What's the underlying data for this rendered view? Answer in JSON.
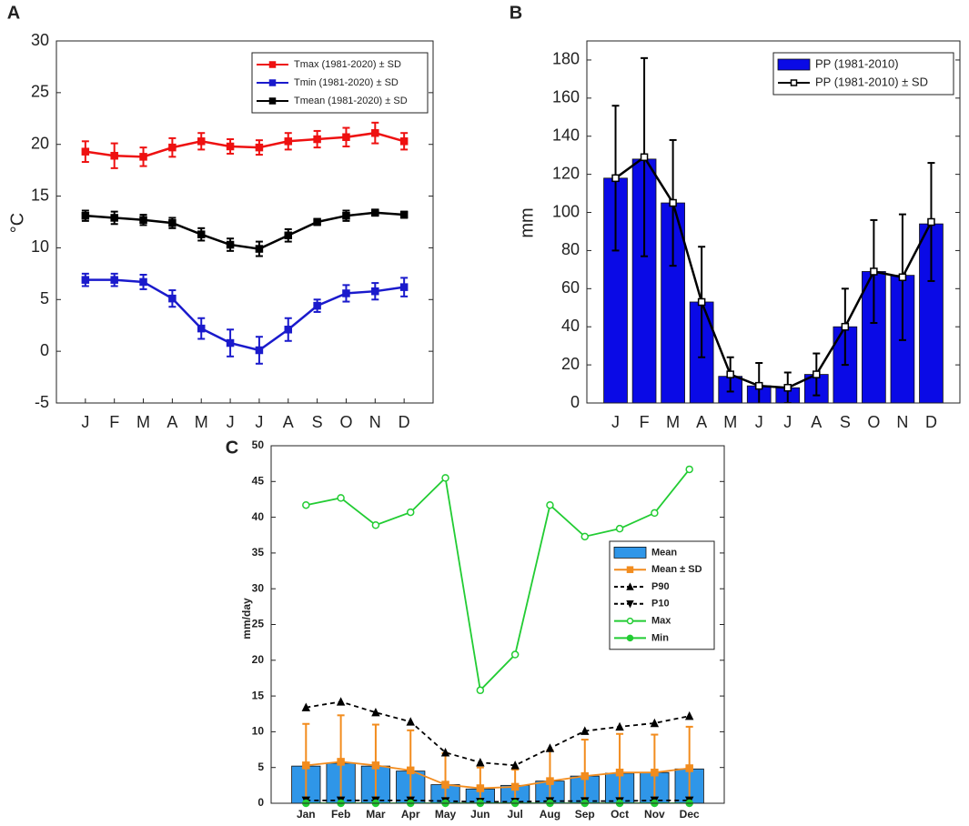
{
  "chart_data": [
    {
      "type": "line",
      "label": "A",
      "ylabel": "°C",
      "categories": [
        "J",
        "F",
        "M",
        "A",
        "M",
        "J",
        "J",
        "A",
        "S",
        "O",
        "N",
        "D"
      ],
      "ylim": [
        -5,
        30
      ],
      "yticks": [
        -5,
        0,
        5,
        10,
        15,
        20,
        25,
        30
      ],
      "legend": "upper right",
      "series": [
        {
          "name": "Tmax (1981-2020) ± SD",
          "type": "line",
          "color": "#ee1111",
          "marker": "square",
          "filled": true,
          "linestyle": "solid",
          "values": [
            19.3,
            18.9,
            18.8,
            19.7,
            20.3,
            19.8,
            19.7,
            20.3,
            20.5,
            20.7,
            21.1,
            20.3
          ],
          "errors": [
            1.0,
            1.2,
            0.9,
            0.9,
            0.8,
            0.7,
            0.7,
            0.8,
            0.8,
            0.9,
            1.0,
            0.8
          ]
        },
        {
          "name": "Tmin (1981-2020) ± SD",
          "type": "line",
          "color": "#1a1acc",
          "marker": "square",
          "filled": true,
          "linestyle": "solid",
          "values": [
            6.9,
            6.9,
            6.7,
            5.1,
            2.2,
            0.8,
            0.1,
            2.1,
            4.4,
            5.6,
            5.8,
            6.2
          ],
          "errors": [
            0.6,
            0.6,
            0.7,
            0.8,
            1.0,
            1.3,
            1.3,
            1.1,
            0.6,
            0.8,
            0.8,
            0.9
          ]
        },
        {
          "name": "Tmean (1981-2020) ± SD",
          "type": "line",
          "color": "#000000",
          "marker": "square",
          "filled": true,
          "linestyle": "solid",
          "values": [
            13.1,
            12.9,
            12.7,
            12.4,
            11.3,
            10.3,
            9.9,
            11.2,
            12.5,
            13.1,
            13.4,
            13.2
          ],
          "errors": [
            0.5,
            0.6,
            0.5,
            0.5,
            0.6,
            0.6,
            0.7,
            0.6,
            0.3,
            0.5,
            0.3,
            0.3
          ]
        }
      ]
    },
    {
      "type": "bar",
      "label": "B",
      "ylabel": "mm",
      "categories": [
        "J",
        "F",
        "M",
        "A",
        "M",
        "J",
        "J",
        "A",
        "S",
        "O",
        "N",
        "D"
      ],
      "ylim": [
        0,
        190
      ],
      "yticks": [
        0,
        20,
        40,
        60,
        80,
        100,
        120,
        140,
        160,
        180
      ],
      "legend": "upper right",
      "series": [
        {
          "name": "PP (1981-2010)",
          "type": "bar",
          "color": "#0a0ae6",
          "values": [
            118,
            128,
            105,
            53,
            14,
            9,
            8,
            15,
            40,
            69,
            67,
            94
          ]
        },
        {
          "name": "PP (1981-2010) ± SD",
          "type": "line",
          "color": "#000000",
          "marker": "square",
          "filled": false,
          "linestyle": "solid",
          "values": [
            118,
            129,
            105,
            53,
            15,
            9,
            8,
            15,
            40,
            69,
            66,
            95
          ],
          "errors": [
            38,
            52,
            33,
            29,
            9,
            12,
            8,
            11,
            20,
            27,
            33,
            31
          ]
        }
      ]
    },
    {
      "type": "bar",
      "label": "C",
      "ylabel": "mm/day",
      "categories": [
        "Jan",
        "Feb",
        "Mar",
        "Apr",
        "May",
        "Jun",
        "Jul",
        "Aug",
        "Sep",
        "Oct",
        "Nov",
        "Dec"
      ],
      "ylim": [
        0,
        50
      ],
      "yticks": [
        0,
        5,
        10,
        15,
        20,
        25,
        30,
        35,
        40,
        45,
        50
      ],
      "legend": "center right",
      "series": [
        {
          "name": "Mean",
          "type": "bar",
          "color": "#2f96e8",
          "values": [
            5.2,
            5.6,
            5.2,
            4.5,
            2.6,
            2.0,
            2.5,
            3.1,
            3.8,
            4.2,
            4.3,
            4.8
          ]
        },
        {
          "name": "Mean ± SD",
          "type": "line",
          "color": "#f28c1e",
          "marker": "square",
          "filled": true,
          "linestyle": "solid",
          "values": [
            5.3,
            5.8,
            5.3,
            4.6,
            2.6,
            2.1,
            2.3,
            3.1,
            3.8,
            4.3,
            4.3,
            4.9
          ],
          "errors": [
            5.8,
            6.5,
            5.7,
            5.6,
            4.4,
            2.9,
            2.4,
            4.3,
            5.1,
            5.4,
            5.3,
            5.8
          ]
        },
        {
          "name": "P90",
          "type": "line",
          "color": "#000000",
          "marker": "triangle-up",
          "filled": true,
          "linestyle": "dashed",
          "values": [
            13.4,
            14.2,
            12.7,
            11.4,
            7.1,
            5.7,
            5.3,
            7.7,
            10.1,
            10.7,
            11.2,
            12.2
          ]
        },
        {
          "name": "P10",
          "type": "line",
          "color": "#000000",
          "marker": "triangle-down",
          "filled": true,
          "linestyle": "dashed",
          "values": [
            0.4,
            0.4,
            0.4,
            0.4,
            0.3,
            0.2,
            0.2,
            0.3,
            0.3,
            0.3,
            0.4,
            0.4
          ]
        },
        {
          "name": "Max",
          "type": "line",
          "color": "#22cc33",
          "marker": "circle",
          "filled": false,
          "linestyle": "solid",
          "values": [
            41.7,
            42.7,
            38.9,
            40.7,
            45.5,
            15.8,
            20.8,
            41.7,
            37.3,
            38.4,
            40.6,
            46.7
          ]
        },
        {
          "name": "Min",
          "type": "line",
          "color": "#22cc33",
          "marker": "circle",
          "filled": true,
          "linestyle": "solid",
          "values": [
            0,
            0,
            0,
            0,
            0,
            0,
            0,
            0,
            0,
            0,
            0,
            0
          ]
        }
      ]
    }
  ]
}
